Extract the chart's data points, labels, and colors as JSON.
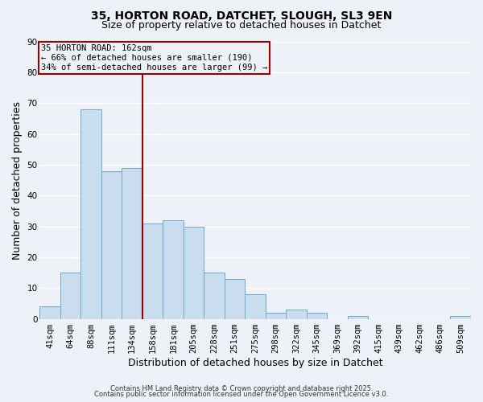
{
  "title": "35, HORTON ROAD, DATCHET, SLOUGH, SL3 9EN",
  "subtitle": "Size of property relative to detached houses in Datchet",
  "xlabel": "Distribution of detached houses by size in Datchet",
  "ylabel": "Number of detached properties",
  "bar_labels": [
    "41sqm",
    "64sqm",
    "88sqm",
    "111sqm",
    "134sqm",
    "158sqm",
    "181sqm",
    "205sqm",
    "228sqm",
    "251sqm",
    "275sqm",
    "298sqm",
    "322sqm",
    "345sqm",
    "369sqm",
    "392sqm",
    "415sqm",
    "439sqm",
    "462sqm",
    "486sqm",
    "509sqm"
  ],
  "bar_values": [
    4,
    15,
    68,
    48,
    49,
    31,
    32,
    30,
    15,
    13,
    8,
    2,
    3,
    2,
    0,
    1,
    0,
    0,
    0,
    0,
    1
  ],
  "bar_color": "#c9ddef",
  "bar_edge_color": "#6aaad4",
  "ylim": [
    0,
    90
  ],
  "yticks": [
    0,
    10,
    20,
    30,
    40,
    50,
    60,
    70,
    80,
    90
  ],
  "property_label": "35 HORTON ROAD: 162sqm",
  "annotation_line1": "← 66% of detached houses are smaller (190)",
  "annotation_line2": "34% of semi-detached houses are larger (99) →",
  "vline_bar_index": 5,
  "footer1": "Contains HM Land Registry data © Crown copyright and database right 2025.",
  "footer2": "Contains public sector information licensed under the Open Government Licence v3.0.",
  "background_color": "#eef2f8",
  "grid_color": "#ffffff",
  "vline_color": "#990000",
  "box_edge_color": "#990000",
  "title_fontsize": 10,
  "subtitle_fontsize": 9,
  "axis_label_fontsize": 9,
  "tick_fontsize": 7.5,
  "annotation_fontsize": 7.5,
  "footer_fontsize": 6
}
